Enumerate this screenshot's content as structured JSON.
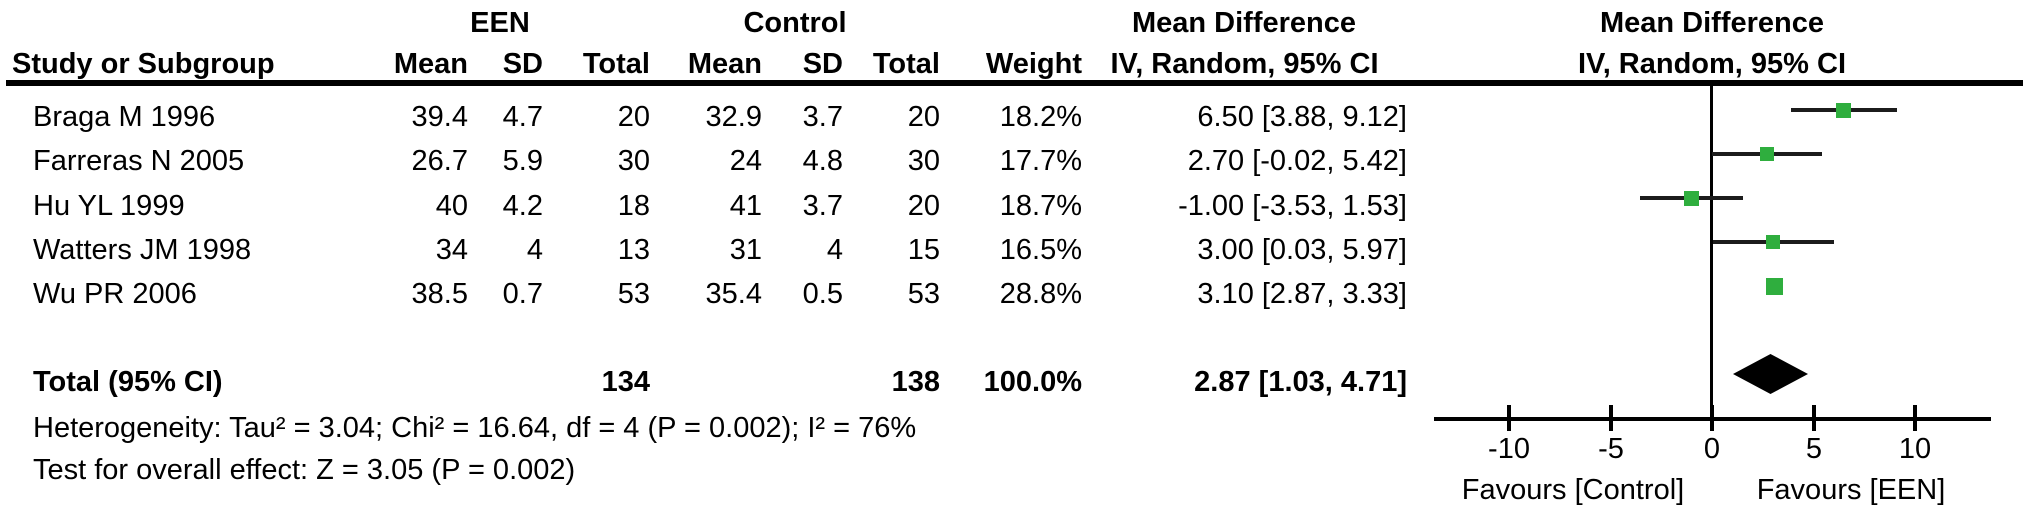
{
  "table": {
    "group1_label": "EEN",
    "group2_label": "Control",
    "effect_col_title": "Mean Difference",
    "effect_col_subtitle": "IV, Random, 95% CI",
    "headers": {
      "study": "Study or Subgroup",
      "mean": "Mean",
      "sd": "SD",
      "total": "Total",
      "weight": "Weight"
    }
  },
  "plot": {
    "title": "Mean Difference",
    "subtitle": "IV, Random, 95% CI",
    "favours_left": "Favours [Control]",
    "favours_right": "Favours [EEN]"
  },
  "studies": [
    {
      "name": "Braga M 1996",
      "een_mean": "39.4",
      "een_sd": "4.7",
      "een_total": "20",
      "ctrl_mean": "32.9",
      "ctrl_sd": "3.7",
      "ctrl_total": "20",
      "weight": "18.2%",
      "effect": "6.50 [3.88, 9.12]"
    },
    {
      "name": "Farreras N 2005",
      "een_mean": "26.7",
      "een_sd": "5.9",
      "een_total": "30",
      "ctrl_mean": "24",
      "ctrl_sd": "4.8",
      "ctrl_total": "30",
      "weight": "17.7%",
      "effect": "2.70 [-0.02, 5.42]"
    },
    {
      "name": "Hu YL 1999",
      "een_mean": "40",
      "een_sd": "4.2",
      "een_total": "18",
      "ctrl_mean": "41",
      "ctrl_sd": "3.7",
      "ctrl_total": "20",
      "weight": "18.7%",
      "effect": "-1.00 [-3.53, 1.53]"
    },
    {
      "name": "Watters JM 1998",
      "een_mean": "34",
      "een_sd": "4",
      "een_total": "13",
      "ctrl_mean": "31",
      "ctrl_sd": "4",
      "ctrl_total": "15",
      "weight": "16.5%",
      "effect": "3.00 [0.03, 5.97]"
    },
    {
      "name": "Wu PR 2006",
      "een_mean": "38.5",
      "een_sd": "0.7",
      "een_total": "53",
      "ctrl_mean": "35.4",
      "ctrl_sd": "0.5",
      "ctrl_total": "53",
      "weight": "28.8%",
      "effect": "3.10 [2.87, 3.33]"
    }
  ],
  "total_row": {
    "label": "Total (95% CI)",
    "een_total": "134",
    "control_total": "138",
    "weight": "100.0%",
    "effect": "2.87 [1.03, 4.71]"
  },
  "footnotes": {
    "heterogeneity": "Heterogeneity: Tau² = 3.04; Chi² = 16.64, df = 4 (P = 0.002); I² = 76%",
    "overall_effect": "Test for overall effect: Z = 3.05 (P = 0.002)"
  },
  "chart_data": {
    "type": "forest",
    "title": "Mean Difference",
    "effect_measure": "IV, Random, 95% CI",
    "studies": [
      {
        "label": "Braga M 1996",
        "estimate": 6.5,
        "ci_lower": 3.88,
        "ci_upper": 9.12,
        "weight_pct": 18.2
      },
      {
        "label": "Farreras N 2005",
        "estimate": 2.7,
        "ci_lower": -0.02,
        "ci_upper": 5.42,
        "weight_pct": 17.7
      },
      {
        "label": "Hu YL 1999",
        "estimate": -1.0,
        "ci_lower": -3.53,
        "ci_upper": 1.53,
        "weight_pct": 18.7
      },
      {
        "label": "Watters JM 1998",
        "estimate": 3.0,
        "ci_lower": 0.03,
        "ci_upper": 5.97,
        "weight_pct": 16.5
      },
      {
        "label": "Wu PR 2006",
        "estimate": 3.1,
        "ci_lower": 2.87,
        "ci_upper": 3.33,
        "weight_pct": 28.8
      }
    ],
    "overall": {
      "label": "Total (95% CI)",
      "estimate": 2.87,
      "ci_lower": 1.03,
      "ci_upper": 4.71
    },
    "totals": {
      "een_n": 134,
      "control_n": 138,
      "weight_pct": 100.0
    },
    "heterogeneity": {
      "tau2": 3.04,
      "chi2": 16.64,
      "df": 4,
      "p": 0.002,
      "i2_pct": 76
    },
    "overall_test": {
      "z": 3.05,
      "p": 0.002
    },
    "x_ticks": [
      -10,
      -5,
      0,
      5,
      10
    ],
    "xlim": [
      -13.7,
      13.7
    ],
    "x_axis_left_label": "Favours [Control]",
    "x_axis_right_label": "Favours [EEN]",
    "legend": "none",
    "grid": false
  },
  "colors": {
    "marker_green": "#2FAE3E",
    "diamond_black": "#000000",
    "ci_line": "#1c1c1c",
    "text": "#000000",
    "rule": "#000000"
  }
}
